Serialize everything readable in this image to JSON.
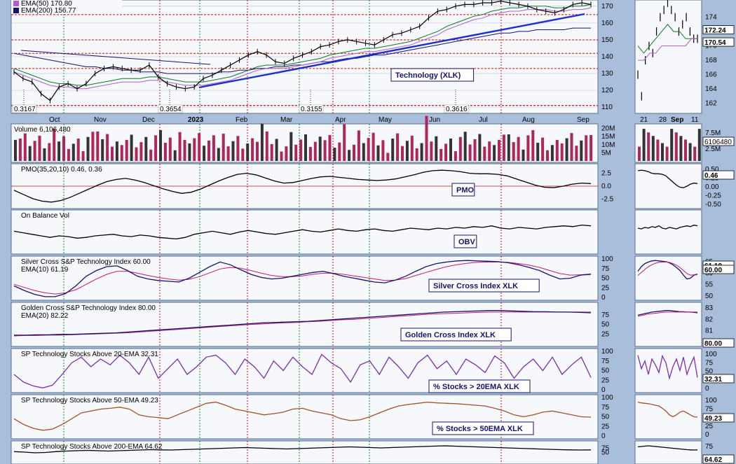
{
  "chart_data": [
    {
      "type": "line",
      "name": "Technology (XLK)",
      "legend": [
        "EMA(50) 170.80",
        "EMA(200) 156.77"
      ],
      "months": [
        "Oct",
        "Nov",
        "Dec",
        "2023",
        "Feb",
        "Mar",
        "Apr",
        "May",
        "Jun",
        "Jul",
        "Aug",
        "Sep"
      ],
      "y_ticks": [
        110,
        120,
        130,
        140,
        150,
        160,
        170
      ],
      "ylim": [
        108,
        172
      ],
      "price": [
        131,
        127,
        125,
        118,
        114,
        122,
        124,
        121,
        124,
        130,
        133,
        134,
        133,
        132,
        132,
        135,
        128,
        124,
        122,
        121,
        122,
        127,
        129,
        132,
        135,
        138,
        141,
        143,
        141,
        137,
        136,
        139,
        141,
        143,
        146,
        147,
        149,
        150,
        149,
        148,
        147,
        150,
        153,
        154,
        156,
        158,
        163,
        167,
        168,
        170,
        171,
        171,
        172,
        172,
        173,
        172,
        171,
        170,
        168,
        167,
        166,
        168,
        171,
        172,
        171
      ],
      "ema50": [
        133,
        131,
        129,
        127,
        125,
        124,
        124,
        123,
        123,
        124,
        125,
        126,
        127,
        127,
        127,
        128,
        128,
        127,
        126,
        125,
        125,
        125,
        126,
        127,
        128,
        130,
        132,
        134,
        135,
        135,
        135,
        136,
        137,
        138,
        139,
        141,
        142,
        143,
        144,
        145,
        145,
        146,
        147,
        148,
        149,
        151,
        153,
        155,
        158,
        160,
        162,
        164,
        165,
        167,
        168,
        169,
        169,
        170,
        170,
        170,
        169,
        169,
        170,
        170,
        171
      ],
      "ema200": [
        142,
        141,
        140,
        139,
        138,
        137,
        136,
        135,
        134,
        134,
        133,
        133,
        132,
        132,
        131,
        131,
        131,
        130,
        130,
        130,
        130,
        130,
        130,
        131,
        131,
        132,
        132,
        133,
        133,
        134,
        134,
        135,
        135,
        136,
        137,
        137,
        138,
        139,
        139,
        140,
        141,
        141,
        142,
        143,
        144,
        145,
        146,
        147,
        148,
        149,
        150,
        151,
        152,
        153,
        154,
        154,
        155,
        155,
        156,
        156,
        156,
        156,
        157,
        157,
        157
      ],
      "annotations": [
        "0.3167",
        "0.3654",
        "0.3155",
        "0.3616"
      ],
      "inset_ticks": [
        "174",
        "172",
        "170",
        "168",
        "166",
        "164",
        "162"
      ],
      "inset_price_badge": "172.24",
      "inset_last_badge": "170.54",
      "inset_xlabels": [
        "21",
        "28",
        "Sep",
        "11"
      ]
    },
    {
      "type": "bar",
      "name": "Volume",
      "legend": "Volume 6,106,480",
      "y_ticks": [
        "20M",
        "15M",
        "10M",
        "5M"
      ],
      "inset_ticks": [
        "7.5M",
        "5.0M",
        "2.5M"
      ],
      "inset_badge": "6106480"
    },
    {
      "type": "line",
      "name": "PMO",
      "legend": "PMO(35,20,10) 0.46, 0.36",
      "y_ticks": [
        "2.5",
        "0.0",
        "-2.5"
      ],
      "ylim": [
        -3.8,
        3.8
      ],
      "values": [
        -0.8,
        -1.6,
        -2.4,
        -2.9,
        -3.1,
        -2.8,
        -2.2,
        -1.4,
        -0.6,
        0.2,
        0.9,
        1.3,
        1.5,
        1.2,
        0.7,
        0.1,
        -0.5,
        -1.0,
        -1.4,
        -1.2,
        -0.6,
        0.2,
        1.0,
        1.7,
        2.3,
        2.5,
        2.2,
        1.6,
        1.0,
        0.6,
        0.7,
        1.1,
        1.5,
        1.8,
        1.9,
        1.7,
        1.5,
        1.3,
        1.2,
        1.1,
        1.2,
        1.4,
        1.8,
        2.2,
        2.7,
        3.0,
        3.1,
        3.0,
        2.8,
        2.5,
        2.4,
        2.4,
        2.3,
        2.0,
        1.4,
        0.8,
        0.2,
        -0.2,
        -0.3,
        0.0,
        0.4,
        0.6,
        0.5
      ],
      "tag": "PMO",
      "inset_ticks": [
        "0.50",
        "0.25",
        "0.00",
        "-0.25",
        "-0.50"
      ],
      "inset_badge": "0.46"
    },
    {
      "type": "line",
      "name": "On Balance Vol",
      "legend": "On Balance Vol",
      "values": [
        52,
        48,
        44,
        40,
        36,
        40,
        38,
        34,
        36,
        40,
        42,
        44,
        40,
        38,
        42,
        40,
        36,
        34,
        32,
        36,
        44,
        48,
        52,
        48,
        44,
        50,
        54,
        50,
        46,
        44,
        48,
        52,
        56,
        52,
        50,
        54,
        58,
        54,
        52,
        56,
        58,
        54,
        52,
        56,
        60,
        58,
        56,
        60,
        58,
        62,
        60,
        64,
        62,
        66,
        60,
        58,
        62,
        60,
        58,
        62,
        64,
        66,
        64,
        68,
        66
      ],
      "tag": "OBV"
    },
    {
      "type": "line",
      "name": "Silver Cross S&P Technology Index",
      "legend": [
        "Silver Cross S&P Technology Index 60.00",
        "EMA(10) 61.19"
      ],
      "y_ticks": [
        "100",
        "75",
        "50",
        "25",
        "0"
      ],
      "ylim": [
        0,
        100
      ],
      "values": [
        30,
        18,
        8,
        2,
        2,
        10,
        30,
        55,
        70,
        80,
        82,
        70,
        55,
        48,
        44,
        42,
        40,
        50,
        65,
        80,
        92,
        85,
        72,
        60,
        52,
        48,
        50,
        55,
        60,
        65,
        68,
        62,
        55,
        50,
        45,
        40,
        38,
        45,
        55,
        68,
        80,
        88,
        92,
        95,
        96,
        95,
        94,
        93,
        90,
        85,
        78,
        70,
        58,
        48,
        50,
        58,
        60
      ],
      "ema": [
        34,
        26,
        18,
        12,
        9,
        12,
        20,
        34,
        48,
        60,
        68,
        68,
        63,
        57,
        52,
        48,
        45,
        47,
        54,
        64,
        74,
        78,
        76,
        70,
        63,
        57,
        54,
        54,
        56,
        60,
        63,
        63,
        60,
        56,
        52,
        48,
        44,
        45,
        49,
        57,
        65,
        73,
        80,
        85,
        89,
        91,
        92,
        92,
        91,
        88,
        84,
        78,
        70,
        62,
        58,
        59,
        61
      ],
      "tag": "Silver Cross Index XLK",
      "inset_ticks": [
        "65",
        "60",
        "55",
        "50"
      ],
      "inset_badges": [
        "61.19",
        "60.00"
      ]
    },
    {
      "type": "line",
      "name": "Golden Cross S&P Technology Index",
      "legend": [
        "Golden Cross S&P Technology Index 80.00",
        "EMA(20) 82.22"
      ],
      "y_ticks": [
        "75",
        "50",
        "25"
      ],
      "ylim": [
        0,
        100
      ],
      "values": [
        22,
        22,
        23,
        23,
        24,
        24,
        25,
        26,
        27,
        28,
        30,
        32,
        34,
        36,
        38,
        40,
        42,
        44,
        46,
        48,
        50,
        52,
        54,
        55,
        56,
        57,
        58,
        60,
        62,
        64,
        66,
        68,
        70,
        72,
        74,
        76,
        78,
        80,
        82,
        83,
        84,
        85,
        86,
        86,
        85,
        84,
        83,
        83,
        82,
        82,
        81,
        80
      ],
      "ema": [
        20,
        21,
        21,
        22,
        22,
        23,
        24,
        25,
        26,
        27,
        28,
        30,
        32,
        34,
        36,
        38,
        40,
        42,
        44,
        46,
        48,
        50,
        51,
        53,
        54,
        55,
        57,
        58,
        60,
        62,
        63,
        65,
        67,
        69,
        71,
        73,
        75,
        77,
        78,
        79,
        80,
        81,
        82,
        82,
        82,
        82,
        82,
        82,
        82,
        82,
        82,
        82
      ],
      "tag": "Golden Cross Index XLK",
      "inset_ticks": [
        "83",
        "82",
        "81",
        "80"
      ],
      "inset_badge": "80.00"
    },
    {
      "type": "line",
      "name": "SP Technology Stocks Above 20-EMA",
      "legend": "SP Technology Stocks Above 20-EMA 32.31",
      "y_ticks": [
        "100",
        "75",
        "50",
        "25",
        "0"
      ],
      "ylim": [
        0,
        100
      ],
      "values": [
        40,
        20,
        10,
        5,
        12,
        40,
        70,
        85,
        60,
        80,
        65,
        90,
        70,
        40,
        85,
        30,
        55,
        80,
        40,
        60,
        85,
        90,
        70,
        40,
        80,
        60,
        30,
        75,
        50,
        85,
        60,
        40,
        92,
        70,
        55,
        20,
        65,
        75,
        40,
        85,
        60,
        30,
        70,
        90,
        55,
        75,
        40,
        80,
        65,
        45,
        88,
        70,
        30,
        60,
        80,
        50,
        85,
        40,
        65,
        85,
        32
      ],
      "tag": "% Stocks > 20EMA XLK",
      "inset_ticks": [
        "100",
        "75",
        "50",
        "25",
        "0"
      ],
      "inset_badge": "32.31"
    },
    {
      "type": "line",
      "name": "SP Technology Stocks Above 50-EMA",
      "legend": "SP Technology Stocks Above 50-EMA 49.23",
      "y_ticks": [
        "100",
        "75",
        "50",
        "25",
        "0"
      ],
      "ylim": [
        0,
        100
      ],
      "values": [
        45,
        30,
        20,
        15,
        18,
        30,
        45,
        60,
        65,
        70,
        72,
        75,
        70,
        55,
        50,
        48,
        45,
        55,
        65,
        75,
        85,
        88,
        80,
        70,
        65,
        60,
        55,
        58,
        62,
        70,
        72,
        65,
        60,
        55,
        45,
        40,
        42,
        50,
        60,
        70,
        78,
        82,
        85,
        88,
        86,
        85,
        84,
        82,
        80,
        78,
        72,
        65,
        55,
        50,
        55,
        62,
        65,
        60,
        55,
        50,
        49
      ],
      "tag": "% Stocks > 50EMA XLK",
      "inset_ticks": [
        "100",
        "75",
        "50",
        "25",
        "0"
      ],
      "inset_badge": "49.23"
    },
    {
      "type": "line",
      "name": "SP Technology Stocks Above 200-EMA",
      "legend": "SP Technology Stocks Above 200-EMA 64.62",
      "y_ticks": [
        "75",
        "50"
      ],
      "ylim": [
        0,
        100
      ],
      "values": [
        55,
        52,
        48,
        50,
        55,
        58,
        60,
        62,
        60,
        58,
        60,
        62,
        64,
        66,
        65,
        64,
        66,
        68,
        70,
        72,
        74,
        76,
        78,
        76,
        74,
        72,
        70,
        72,
        74,
        76,
        78,
        80,
        82,
        80,
        78,
        76,
        78,
        80,
        82,
        84,
        86,
        88,
        86,
        84,
        82,
        80,
        78,
        76,
        74,
        72,
        70,
        68,
        66,
        65,
        64,
        65
      ],
      "inset_ticks": [
        "75",
        "50"
      ],
      "inset_badge": "64.62"
    }
  ]
}
